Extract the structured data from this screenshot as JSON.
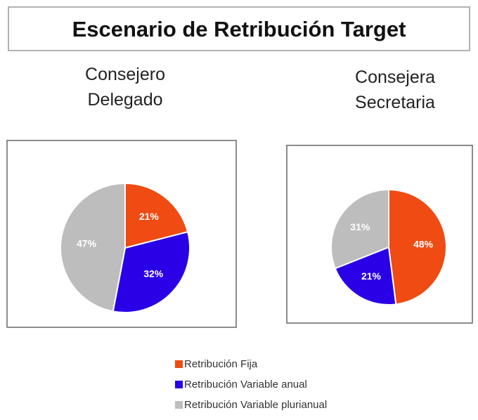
{
  "header": {
    "title": "Escenario de Retribución Target"
  },
  "chart_data": [
    {
      "type": "pie",
      "title": "Consejero\nDelegado",
      "categories": [
        "Retribución Fija",
        "Retribución Variable anual",
        "Retribución Variable plurianual"
      ],
      "values": [
        21,
        32,
        47
      ],
      "value_labels": [
        "21%",
        "32%",
        "47%"
      ],
      "colors": [
        "#ef4b12",
        "#2a00e6",
        "#bdbdbd"
      ]
    },
    {
      "type": "pie",
      "title": "Consejera\nSecretaria",
      "categories": [
        "Retribución Fija",
        "Retribución Variable anual",
        "Retribución Variable plurianual"
      ],
      "values": [
        48,
        21,
        31
      ],
      "value_labels": [
        "48%",
        "21%",
        "31%"
      ],
      "colors": [
        "#ef4b12",
        "#2a00e6",
        "#bdbdbd"
      ]
    }
  ]
}
